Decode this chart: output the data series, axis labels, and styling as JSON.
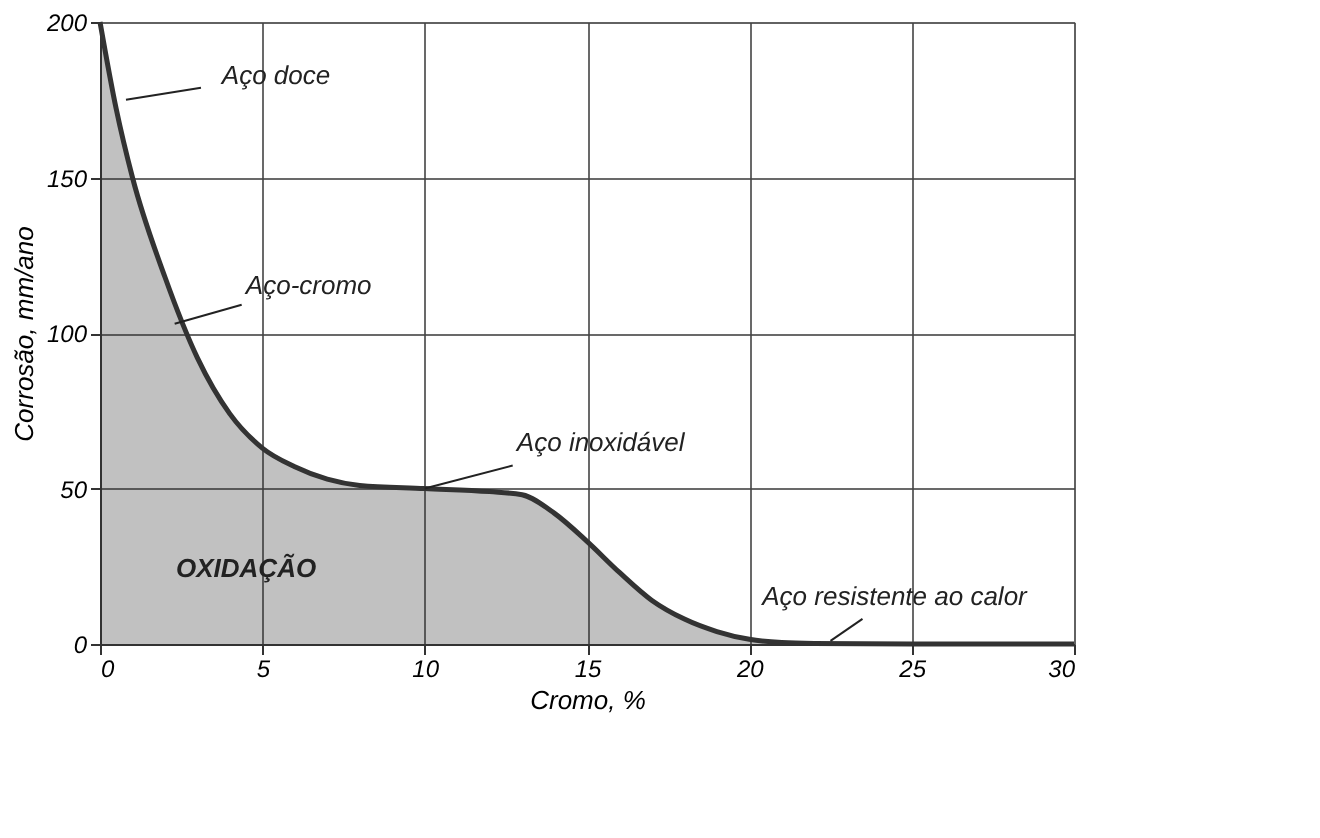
{
  "chart_data": {
    "type": "area",
    "xlabel": "Cromo, %",
    "ylabel": "Corrosão, mm/ano",
    "x": [
      0,
      0.5,
      1,
      2,
      3,
      4,
      5,
      6,
      7,
      8,
      10,
      12,
      13,
      14,
      15,
      16,
      17,
      18,
      19,
      20,
      21,
      22,
      25,
      30
    ],
    "series": [
      {
        "color": "#333333",
        "values": [
          200,
          172,
          150,
          118,
          92,
          74,
          63,
          57,
          53,
          51,
          50,
          49,
          48,
          42,
          33,
          23,
          14,
          8,
          4,
          1.5,
          0.5,
          0.2,
          0,
          0
        ]
      }
    ],
    "xlim": [
      0,
      30
    ],
    "xticks": [
      0,
      5,
      10,
      15,
      20,
      25,
      30
    ],
    "ylim": [
      0,
      200
    ],
    "yticks": [
      0,
      50,
      100,
      150,
      200
    ],
    "grid": true,
    "annotations": [
      {
        "text": "Aço doce",
        "x": 0.8,
        "y": 175
      },
      {
        "text": "Aço-cromo",
        "x": 2.3,
        "y": 103
      },
      {
        "text": "Aço inoxidável",
        "x": 10,
        "y": 50
      },
      {
        "text": "Aço resistente ao calor",
        "x": 22.5,
        "y": 1
      },
      "OXIDAÇÃO"
    ]
  }
}
